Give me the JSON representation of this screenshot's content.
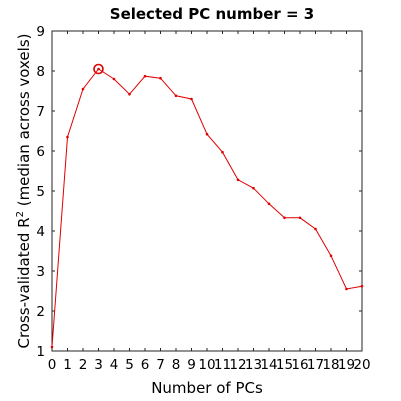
{
  "chart_data": {
    "type": "line",
    "title": "Selected PC number = 3",
    "xlabel": "Number of PCs",
    "ylabel_main": "Cross-validated R",
    "ylabel_sup": "2",
    "ylabel_tail": " (median across voxels)",
    "xlim": [
      0,
      20
    ],
    "ylim": [
      1,
      9
    ],
    "x_ticks": [
      "0",
      "1",
      "2",
      "3",
      "4",
      "5",
      "6",
      "7",
      "8",
      "9",
      "10",
      "11",
      "12",
      "13",
      "14",
      "15",
      "16",
      "17",
      "18",
      "19",
      "20"
    ],
    "y_ticks": [
      "1",
      "2",
      "3",
      "4",
      "5",
      "6",
      "7",
      "8",
      "9"
    ],
    "grid": false,
    "series": [
      {
        "x": [
          0,
          1,
          2,
          3,
          4,
          5,
          6,
          7,
          8,
          9,
          10,
          11,
          12,
          13,
          14,
          15,
          16,
          17,
          18,
          19,
          20
        ],
        "y": [
          1.1,
          6.35,
          7.55,
          8.05,
          7.8,
          7.42,
          7.87,
          7.82,
          7.38,
          7.3,
          6.42,
          5.97,
          5.28,
          5.07,
          4.68,
          4.33,
          4.33,
          4.05,
          3.38,
          2.55,
          2.62
        ],
        "color": "#e00000"
      }
    ],
    "selected_point": {
      "x": 3,
      "y": 8.05,
      "color": "#e00000"
    }
  }
}
